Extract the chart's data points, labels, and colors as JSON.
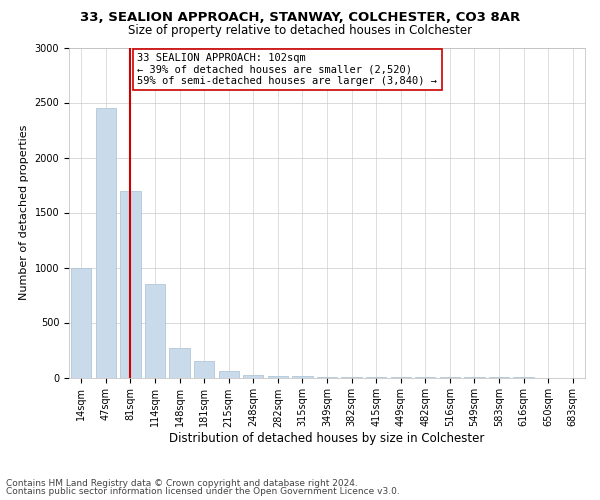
{
  "title1": "33, SEALION APPROACH, STANWAY, COLCHESTER, CO3 8AR",
  "title2": "Size of property relative to detached houses in Colchester",
  "xlabel": "Distribution of detached houses by size in Colchester",
  "ylabel": "Number of detached properties",
  "footnote1": "Contains HM Land Registry data © Crown copyright and database right 2024.",
  "footnote2": "Contains public sector information licensed under the Open Government Licence v3.0.",
  "annotation_line1": "33 SEALION APPROACH: 102sqm",
  "annotation_line2": "← 39% of detached houses are smaller (2,520)",
  "annotation_line3": "59% of semi-detached houses are larger (3,840) →",
  "property_size_idx": 2,
  "bar_color": "#c9daea",
  "bar_edge_color": "#a8c0d4",
  "vline_color": "#cc0000",
  "annotation_box_color": "#cc0000",
  "categories": [
    "14sqm",
    "47sqm",
    "81sqm",
    "114sqm",
    "148sqm",
    "181sqm",
    "215sqm",
    "248sqm",
    "282sqm",
    "315sqm",
    "349sqm",
    "382sqm",
    "415sqm",
    "449sqm",
    "482sqm",
    "516sqm",
    "549sqm",
    "583sqm",
    "616sqm",
    "650sqm",
    "683sqm"
  ],
  "values": [
    1000,
    2450,
    1700,
    850,
    270,
    150,
    60,
    25,
    15,
    10,
    7,
    5,
    4,
    3,
    2,
    2,
    1,
    1,
    1,
    0,
    0
  ],
  "ylim": [
    0,
    3000
  ],
  "yticks": [
    0,
    500,
    1000,
    1500,
    2000,
    2500,
    3000
  ],
  "title1_fontsize": 9.5,
  "title2_fontsize": 8.5,
  "xlabel_fontsize": 8.5,
  "ylabel_fontsize": 8,
  "tick_fontsize": 7,
  "annot_fontsize": 7.5,
  "footnote_fontsize": 6.5
}
